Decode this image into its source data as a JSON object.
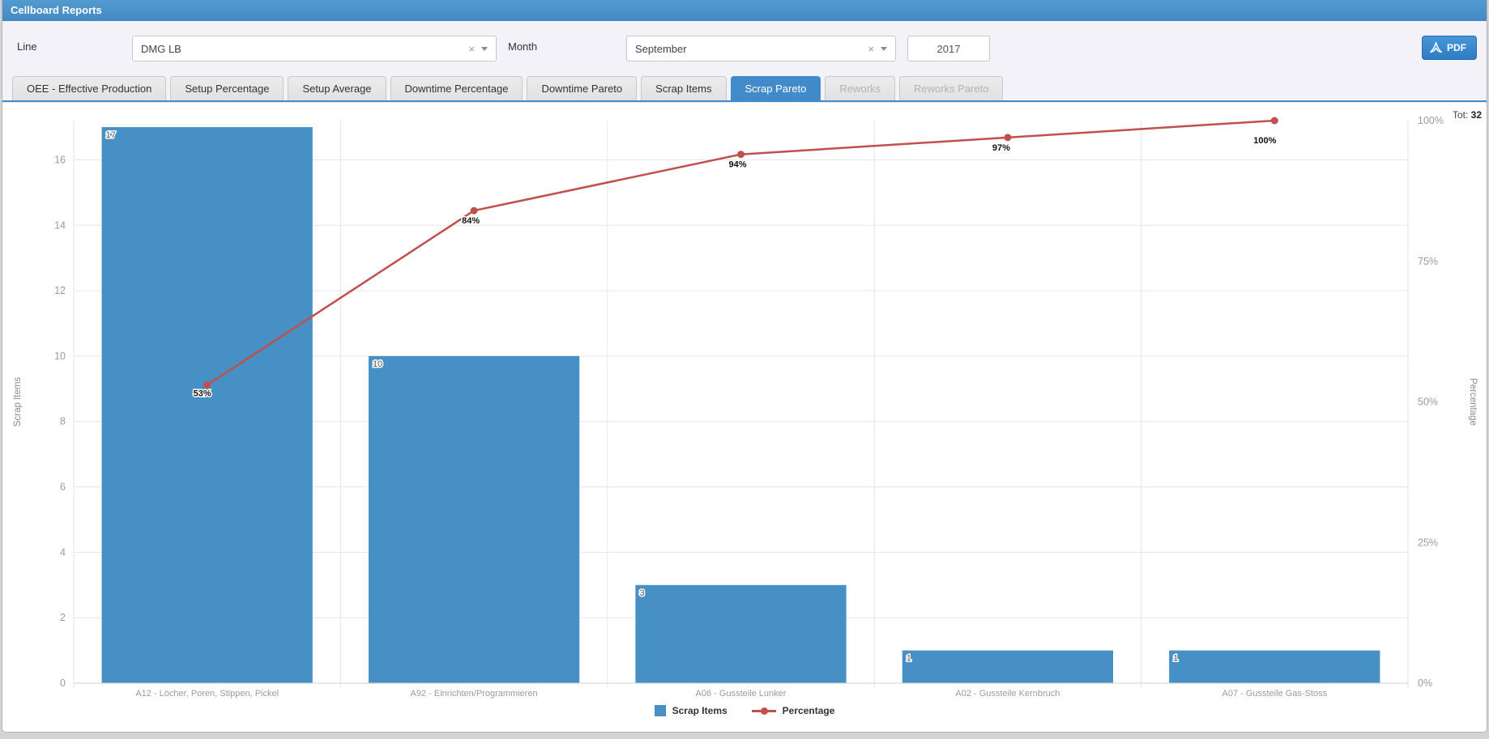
{
  "header": {
    "title": "Cellboard Reports"
  },
  "filters": {
    "line_label": "Line",
    "line_value": "DMG LB",
    "month_label": "Month",
    "month_value": "September",
    "year_value": "2017",
    "clear_glyph": "×",
    "pdf_button_label": "PDF"
  },
  "tabs": [
    {
      "label": "OEE - Effective Production",
      "state": "normal"
    },
    {
      "label": "Setup Percentage",
      "state": "normal"
    },
    {
      "label": "Setup Average",
      "state": "normal"
    },
    {
      "label": "Downtime Percentage",
      "state": "normal"
    },
    {
      "label": "Downtime Pareto",
      "state": "normal"
    },
    {
      "label": "Scrap Items",
      "state": "normal"
    },
    {
      "label": "Scrap Pareto",
      "state": "active"
    },
    {
      "label": "Reworks",
      "state": "disabled"
    },
    {
      "label": "Reworks Pareto",
      "state": "disabled"
    }
  ],
  "chart_data": {
    "type": "bar",
    "subtype": "pareto-bar-plus-line",
    "title": "",
    "total_prefix": "Tot: ",
    "total": 32,
    "categories": [
      "A12 - Löcher, Poren, Stippen, Pickel",
      "A92 - Einrichten/Programmieren",
      "A06 - Gussteile Lunker",
      "A02 - Gussteile Kernbruch",
      "A07 - Gussteile Gas-Stoss"
    ],
    "series": [
      {
        "name": "Scrap Items",
        "type": "bar",
        "color": "#4690C6",
        "values": [
          17,
          10,
          3,
          1,
          1
        ],
        "value_labels": [
          "17",
          "10",
          "3",
          "1",
          "1"
        ]
      },
      {
        "name": "Percentage",
        "type": "line",
        "color": "#C0504D",
        "values": [
          53,
          84,
          94,
          97,
          100
        ],
        "value_labels": [
          "53%",
          "84%",
          "94%",
          "97%",
          "100%"
        ]
      }
    ],
    "ylabel_left": "Scrap Items",
    "ylabel_right": "Percentage",
    "ylim_left": [
      0,
      17.2
    ],
    "ylim_right": [
      0,
      100
    ],
    "yticks_left": [
      0,
      2,
      4,
      6,
      8,
      10,
      12,
      14,
      16
    ],
    "yticks_right": [
      {
        "v": 0,
        "label": "0%"
      },
      {
        "v": 25,
        "label": "25%"
      },
      {
        "v": 50,
        "label": "50%"
      },
      {
        "v": 75,
        "label": "75%"
      },
      {
        "v": 100,
        "label": "100%"
      }
    ],
    "grid": true,
    "legend_position": "bottom",
    "legend": [
      "Scrap Items",
      "Percentage"
    ],
    "colors": {
      "grid": "#e6e6e6",
      "axis_line": "#cfcfcf",
      "tick_text": "#9b9b9b",
      "axis_title": "#8c8c8c",
      "bar_label": "#555555",
      "point_label": "#111111"
    }
  }
}
